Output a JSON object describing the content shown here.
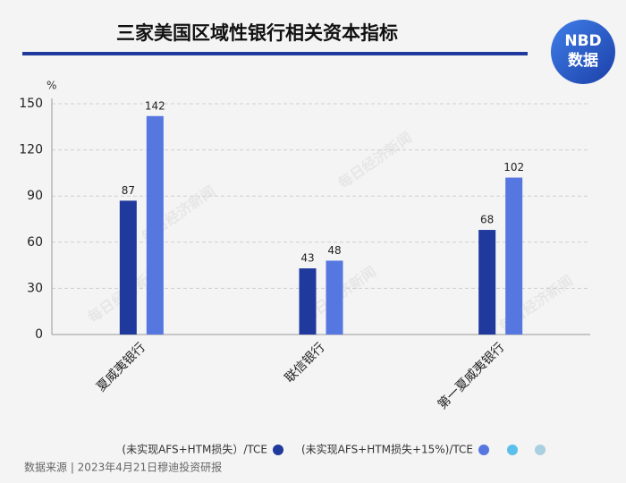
{
  "chart_data": {
    "type": "bar",
    "title": "三家美国区域性银行相关资本指标",
    "y_unit": "%",
    "categories": [
      "夏威夷银行",
      "联信银行",
      "第一夏威夷银行"
    ],
    "series": [
      {
        "name": "(未实现AFS+HTM损失）/TCE",
        "color": "#1f3a9c",
        "values": [
          87,
          43,
          68
        ]
      },
      {
        "name": "(未实现AFS+HTM损失+15%)/TCE",
        "color": "#5676e0",
        "values": [
          142,
          48,
          102
        ]
      }
    ],
    "ylim": [
      0,
      150
    ],
    "yticks": [
      0,
      30,
      60,
      90,
      120,
      150
    ],
    "grid": true,
    "source": "数据来源 | 2023年4月21日穆迪投资研报",
    "logo": {
      "top": "NBD",
      "bottom": "数据"
    },
    "watermark": "每日经济新闻"
  }
}
